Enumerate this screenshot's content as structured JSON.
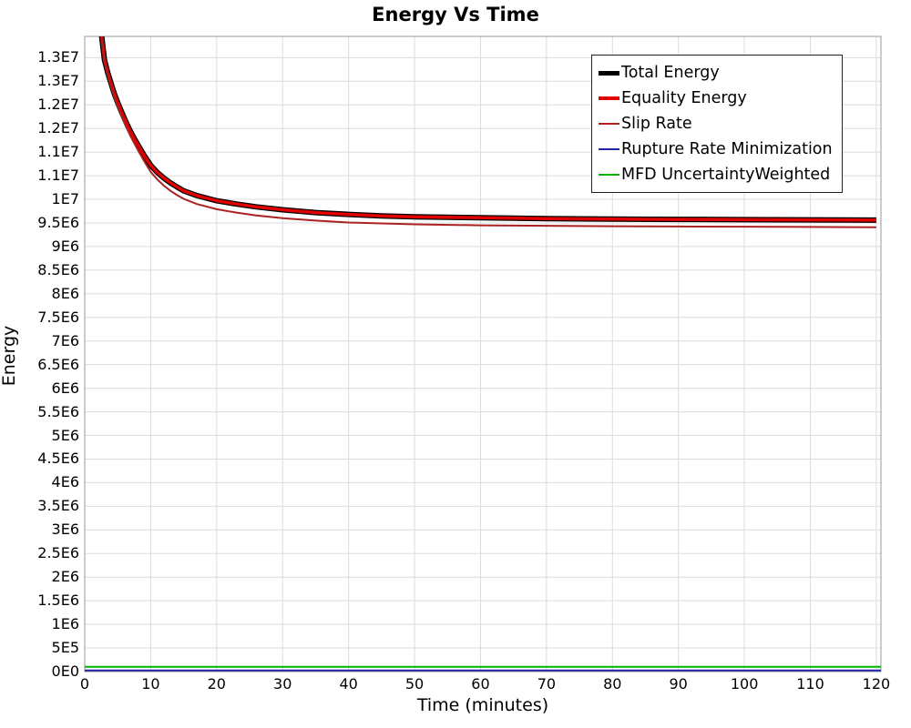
{
  "title": "Energy Vs Time",
  "colors": {
    "background": "#ffffff",
    "grid": "#dcdcdc",
    "plot_border": "#9a9a9a",
    "text": "#000000",
    "legend_border": "#222222"
  },
  "chart_data": {
    "type": "line",
    "title": "Energy Vs Time",
    "xlabel": "Time (minutes)",
    "ylabel": "Energy",
    "xlim": [
      0,
      120.7
    ],
    "ylim": [
      0,
      13450000
    ],
    "grid": true,
    "legend_position": "top-right-inside",
    "x_ticks": [
      {
        "value": 0,
        "label": "0"
      },
      {
        "value": 10,
        "label": "10"
      },
      {
        "value": 20,
        "label": "20"
      },
      {
        "value": 30,
        "label": "30"
      },
      {
        "value": 40,
        "label": "40"
      },
      {
        "value": 50,
        "label": "50"
      },
      {
        "value": 60,
        "label": "60"
      },
      {
        "value": 70,
        "label": "70"
      },
      {
        "value": 80,
        "label": "80"
      },
      {
        "value": 90,
        "label": "90"
      },
      {
        "value": 100,
        "label": "100"
      },
      {
        "value": 110,
        "label": "110"
      },
      {
        "value": 120,
        "label": "120"
      }
    ],
    "y_ticks": [
      {
        "value": 0,
        "label": "0E0"
      },
      {
        "value": 500000,
        "label": "5E5"
      },
      {
        "value": 1000000,
        "label": "1E6"
      },
      {
        "value": 1500000,
        "label": "1.5E6"
      },
      {
        "value": 2000000,
        "label": "2E6"
      },
      {
        "value": 2500000,
        "label": "2.5E6"
      },
      {
        "value": 3000000,
        "label": "3E6"
      },
      {
        "value": 3500000,
        "label": "3.5E6"
      },
      {
        "value": 4000000,
        "label": "4E6"
      },
      {
        "value": 4500000,
        "label": "4.5E6"
      },
      {
        "value": 5000000,
        "label": "5E6"
      },
      {
        "value": 5500000,
        "label": "5.5E6"
      },
      {
        "value": 6000000,
        "label": "6E6"
      },
      {
        "value": 6500000,
        "label": "6.5E6"
      },
      {
        "value": 7000000,
        "label": "7E6"
      },
      {
        "value": 7500000,
        "label": "7.5E6"
      },
      {
        "value": 8000000,
        "label": "8E6"
      },
      {
        "value": 8500000,
        "label": "8.5E6"
      },
      {
        "value": 9000000,
        "label": "9E6"
      },
      {
        "value": 9500000,
        "label": "9.5E6"
      },
      {
        "value": 10000000,
        "label": "1E7"
      },
      {
        "value": 10500000,
        "label": "1.1E7"
      },
      {
        "value": 11000000,
        "label": "1.1E7"
      },
      {
        "value": 11500000,
        "label": "1.2E7"
      },
      {
        "value": 12000000,
        "label": "1.2E7"
      },
      {
        "value": 12500000,
        "label": "1.3E7"
      },
      {
        "value": 13000000,
        "label": "1.3E7"
      }
    ],
    "series": [
      {
        "name": "Total Energy",
        "color": "#000000",
        "line_width": 6,
        "x": [
          2,
          2.3,
          2.6,
          3,
          3.5,
          4,
          4.5,
          5,
          5.5,
          6,
          6.5,
          7,
          7.5,
          8,
          9,
          10,
          11,
          12,
          13,
          14,
          15,
          17,
          20,
          23,
          26,
          30,
          35,
          40,
          45,
          50,
          60,
          70,
          80,
          90,
          100,
          110,
          120
        ],
        "y": [
          14600000,
          13800000,
          13420000,
          12950000,
          12680000,
          12450000,
          12230000,
          12050000,
          11880000,
          11720000,
          11560000,
          11420000,
          11290000,
          11170000,
          10930000,
          10720000,
          10570000,
          10450000,
          10350000,
          10260000,
          10180000,
          10080000,
          9970000,
          9900000,
          9840000,
          9780000,
          9720000,
          9680000,
          9650000,
          9630000,
          9610000,
          9590000,
          9580000,
          9575000,
          9570000,
          9565000,
          9560000
        ]
      },
      {
        "name": "Equality Energy",
        "color": "#e00000",
        "line_width": 3.5,
        "x": [
          2,
          2.3,
          2.6,
          3,
          3.5,
          4,
          4.5,
          5,
          5.5,
          6,
          6.5,
          7,
          7.5,
          8,
          9,
          10,
          11,
          12,
          13,
          14,
          15,
          17,
          20,
          23,
          26,
          30,
          35,
          40,
          45,
          50,
          60,
          70,
          80,
          90,
          100,
          110,
          120
        ],
        "y": [
          14600000,
          13800000,
          13420000,
          12950000,
          12680000,
          12450000,
          12230000,
          12050000,
          11880000,
          11720000,
          11560000,
          11420000,
          11290000,
          11170000,
          10930000,
          10720000,
          10570000,
          10450000,
          10350000,
          10260000,
          10180000,
          10080000,
          9970000,
          9900000,
          9840000,
          9780000,
          9720000,
          9680000,
          9650000,
          9630000,
          9610000,
          9590000,
          9580000,
          9575000,
          9570000,
          9565000,
          9560000
        ]
      },
      {
        "name": "Slip Rate",
        "color": "#aa2222",
        "line_width": 2,
        "x": [
          2,
          2.3,
          2.6,
          3,
          3.5,
          4,
          4.5,
          5,
          5.5,
          6,
          6.5,
          7,
          7.5,
          8,
          9,
          10,
          11,
          12,
          13,
          14,
          15,
          17,
          20,
          23,
          26,
          30,
          35,
          40,
          45,
          50,
          60,
          70,
          80,
          90,
          100,
          110,
          120
        ],
        "y": [
          14550000,
          13740000,
          13380000,
          12900000,
          12620000,
          12380000,
          12160000,
          11970000,
          11800000,
          11630000,
          11470000,
          11320000,
          11190000,
          11060000,
          10810000,
          10580000,
          10420000,
          10290000,
          10180000,
          10090000,
          10010000,
          9900000,
          9790000,
          9720000,
          9660000,
          9600000,
          9550000,
          9510000,
          9490000,
          9470000,
          9450000,
          9440000,
          9430000,
          9425000,
          9420000,
          9415000,
          9410000
        ]
      },
      {
        "name": "Rupture Rate Minimization",
        "color": "#2222aa",
        "line_width": 2,
        "x": [
          0,
          120.7
        ],
        "y": [
          25000,
          25000
        ]
      },
      {
        "name": "MFD UncertaintyWeighted",
        "color": "#00b400",
        "line_width": 2,
        "x": [
          0,
          120.7
        ],
        "y": [
          100000,
          100000
        ]
      }
    ]
  }
}
